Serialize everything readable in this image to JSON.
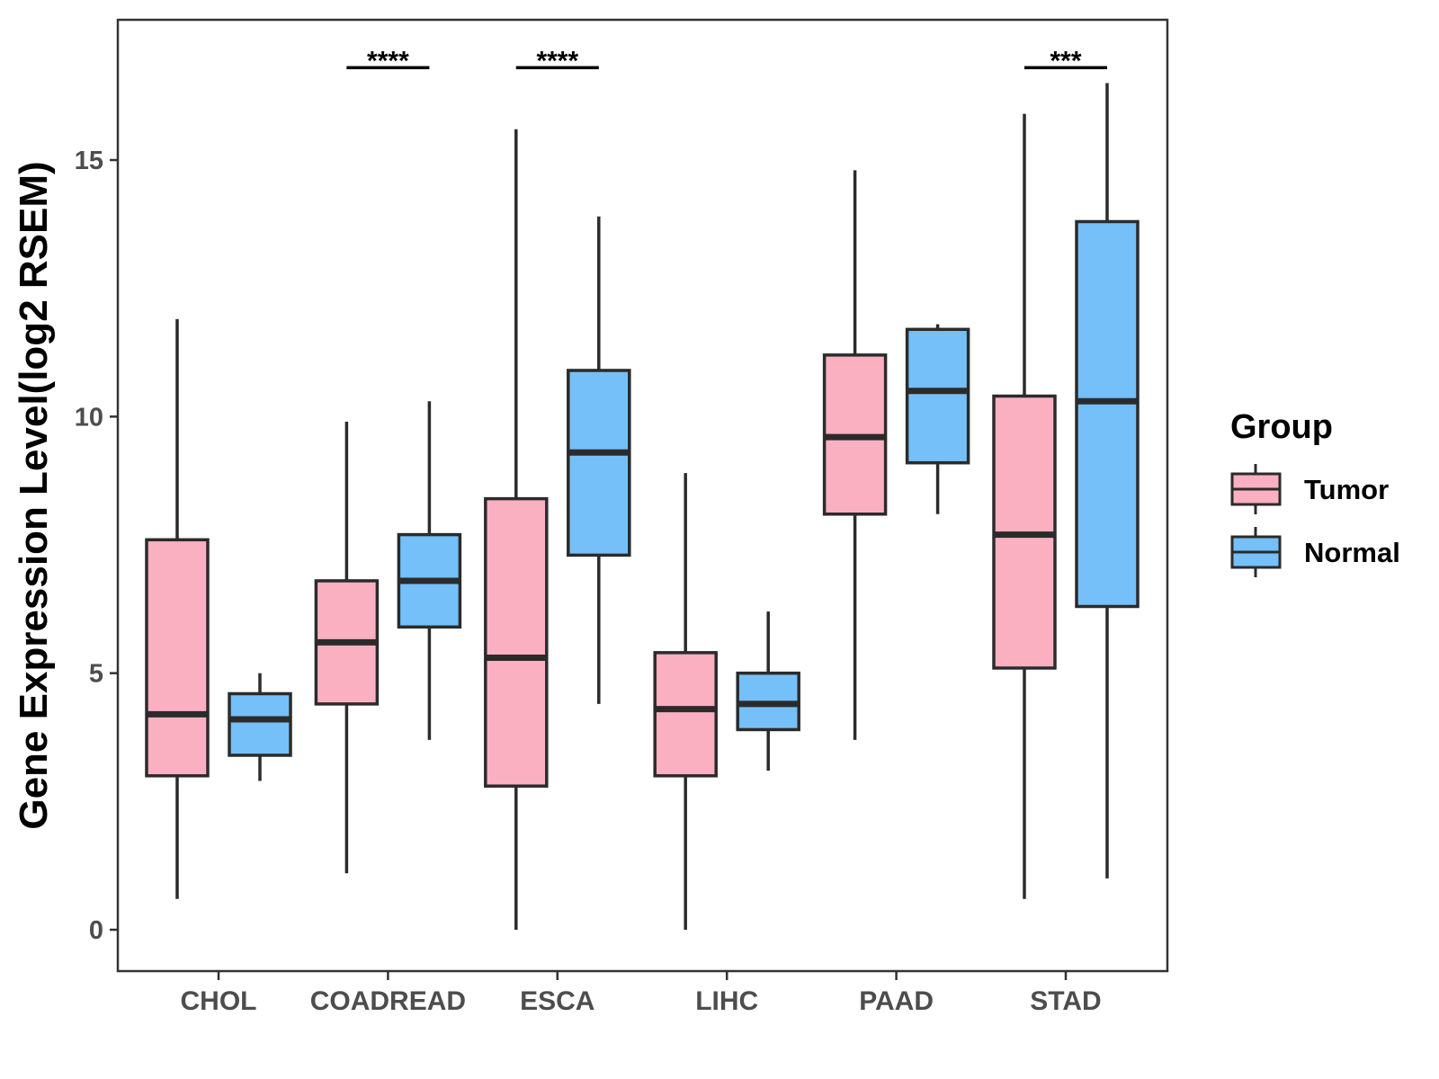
{
  "chart_data": {
    "type": "boxplot",
    "title": "",
    "xlabel": "",
    "ylabel": "Gene Expression Level(log2 RSEM)",
    "ylim": [
      -0.8,
      17.7
    ],
    "yticks": [
      0,
      5,
      10,
      15
    ],
    "categories": [
      "CHOL",
      "COADREAD",
      "ESCA",
      "LIHC",
      "PAAD",
      "STAD"
    ],
    "legend": {
      "title": "Group",
      "position": "right",
      "entries": [
        {
          "name": "Tumor",
          "color": "#FBB0C2"
        },
        {
          "name": "Normal",
          "color": "#75C0F9"
        }
      ]
    },
    "series": [
      {
        "name": "Tumor",
        "color": "#FBB0C2",
        "boxes": [
          {
            "category": "CHOL",
            "min": 0.6,
            "q1": 3.0,
            "median": 4.2,
            "q3": 7.6,
            "max": 11.9
          },
          {
            "category": "COADREAD",
            "min": 1.1,
            "q1": 4.4,
            "median": 5.6,
            "q3": 6.8,
            "max": 9.9
          },
          {
            "category": "ESCA",
            "min": 0.0,
            "q1": 2.8,
            "median": 5.3,
            "q3": 8.4,
            "max": 15.6
          },
          {
            "category": "LIHC",
            "min": 0.0,
            "q1": 3.0,
            "median": 4.3,
            "q3": 5.4,
            "max": 8.9
          },
          {
            "category": "PAAD",
            "min": 3.7,
            "q1": 8.1,
            "median": 9.6,
            "q3": 11.2,
            "max": 14.8
          },
          {
            "category": "STAD",
            "min": 0.6,
            "q1": 5.1,
            "median": 7.7,
            "q3": 10.4,
            "max": 15.9
          }
        ]
      },
      {
        "name": "Normal",
        "color": "#75C0F9",
        "boxes": [
          {
            "category": "CHOL",
            "min": 2.9,
            "q1": 3.4,
            "median": 4.1,
            "q3": 4.6,
            "max": 5.0
          },
          {
            "category": "COADREAD",
            "min": 3.7,
            "q1": 5.9,
            "median": 6.8,
            "q3": 7.7,
            "max": 10.3
          },
          {
            "category": "ESCA",
            "min": 4.4,
            "q1": 7.3,
            "median": 9.3,
            "q3": 10.9,
            "max": 13.9
          },
          {
            "category": "LIHC",
            "min": 3.1,
            "q1": 3.9,
            "median": 4.4,
            "q3": 5.0,
            "max": 6.2
          },
          {
            "category": "PAAD",
            "min": 8.1,
            "q1": 9.1,
            "median": 10.5,
            "q3": 11.7,
            "max": 11.8
          },
          {
            "category": "STAD",
            "min": 1.0,
            "q1": 6.3,
            "median": 10.3,
            "q3": 13.8,
            "max": 16.5
          }
        ]
      }
    ],
    "significance": [
      {
        "category": "COADREAD",
        "label": "****",
        "y": 16.8
      },
      {
        "category": "ESCA",
        "label": "****",
        "y": 16.8
      },
      {
        "category": "STAD",
        "label": "***",
        "y": 16.8
      }
    ],
    "grid": false
  }
}
